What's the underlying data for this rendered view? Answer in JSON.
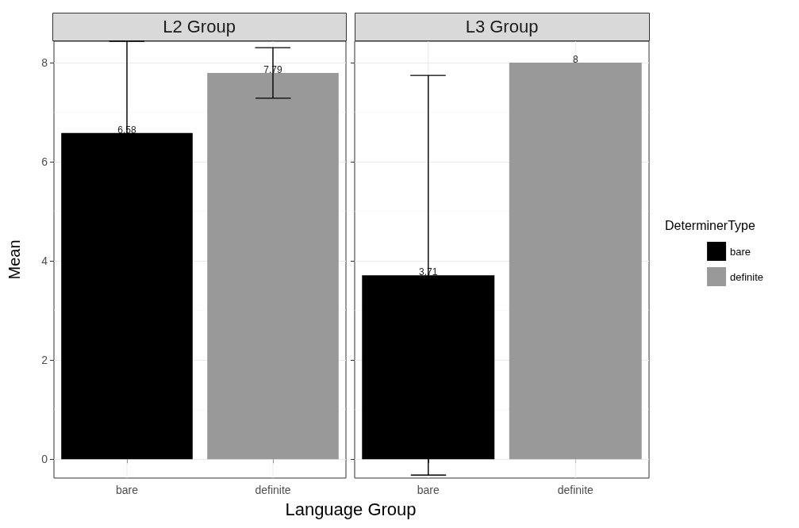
{
  "chart_data": [
    {
      "type": "bar",
      "title": "L2 Group",
      "xlabel": "Language Group",
      "ylabel": "Mean",
      "categories": [
        "bare",
        "definite"
      ],
      "series": [
        {
          "color": "#000000",
          "values": [
            6.58,
            null
          ],
          "errors": [
            [
              6.58,
              8.43
            ],
            null
          ]
        },
        {
          "color": "#999999",
          "values": [
            null,
            7.79
          ],
          "errors": [
            null,
            0.51
          ]
        }
      ],
      "data_labels": true,
      "ylim": [
        -0.38,
        8.43
      ],
      "yticks": [
        0,
        2,
        4,
        6,
        8
      ],
      "grid": true,
      "legend": false
    },
    {
      "type": "bar",
      "title": "L3 Group",
      "categories": [
        "bare",
        "definite"
      ],
      "series": [
        {
          "name": "bare",
          "color": "#000000",
          "values": [
            3.71,
            null
          ],
          "errors": [
            4.03,
            null
          ]
        },
        {
          "name": "definite",
          "color": "#999999",
          "values": [
            null,
            8
          ],
          "errors": [
            null,
            0
          ]
        }
      ],
      "data_labels": true,
      "ylim": [
        -0.38,
        8.43
      ],
      "yticks": [
        0,
        2,
        4,
        6,
        8
      ],
      "grid": true,
      "legend": "right",
      "legend_title": "DeterminerType",
      "tick_labels": "x"
    }
  ]
}
